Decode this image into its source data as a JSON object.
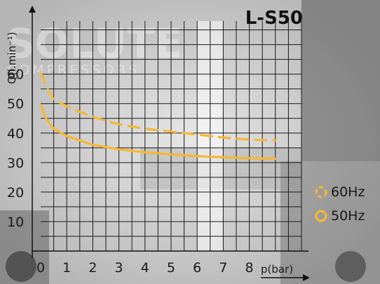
{
  "chart_data": {
    "type": "line",
    "title": "L-S50",
    "xlabel": "p(bar)",
    "ylabel": "Q(l.min⁻¹)",
    "x_ticks": [
      "0",
      "1",
      "2",
      "3",
      "4",
      "5",
      "6",
      "7",
      "8"
    ],
    "y_ticks": [
      "10",
      "20",
      "30",
      "40",
      "50",
      "60"
    ],
    "xlim": [
      0,
      10
    ],
    "ylim": [
      0,
      78
    ],
    "grid": true,
    "legend_position": "right",
    "series": [
      {
        "name": "60Hz",
        "style": "dashed",
        "color": "#f7b733",
        "points": [
          [
            0,
            60.5
          ],
          [
            0.2,
            56
          ],
          [
            0.5,
            51.5
          ],
          [
            1,
            49
          ],
          [
            2,
            45.5
          ],
          [
            3,
            43
          ],
          [
            4,
            41.5
          ],
          [
            5,
            40.5
          ],
          [
            6,
            39.5
          ],
          [
            7,
            38.5
          ],
          [
            8,
            37.8
          ],
          [
            9,
            37.5
          ]
        ]
      },
      {
        "name": "50Hz",
        "style": "solid",
        "color": "#f7b733",
        "points": [
          [
            0,
            49.5
          ],
          [
            0.2,
            45
          ],
          [
            0.5,
            41.5
          ],
          [
            1,
            39
          ],
          [
            2,
            36
          ],
          [
            3,
            34.5
          ],
          [
            4,
            33.5
          ],
          [
            5,
            32.8
          ],
          [
            6,
            32.2
          ],
          [
            7,
            31.8
          ],
          [
            8,
            31.5
          ],
          [
            9,
            31.3
          ]
        ]
      }
    ]
  },
  "background": {
    "brand_top": "SOLUTE",
    "brand_bottom": "COMPRESSORS"
  }
}
